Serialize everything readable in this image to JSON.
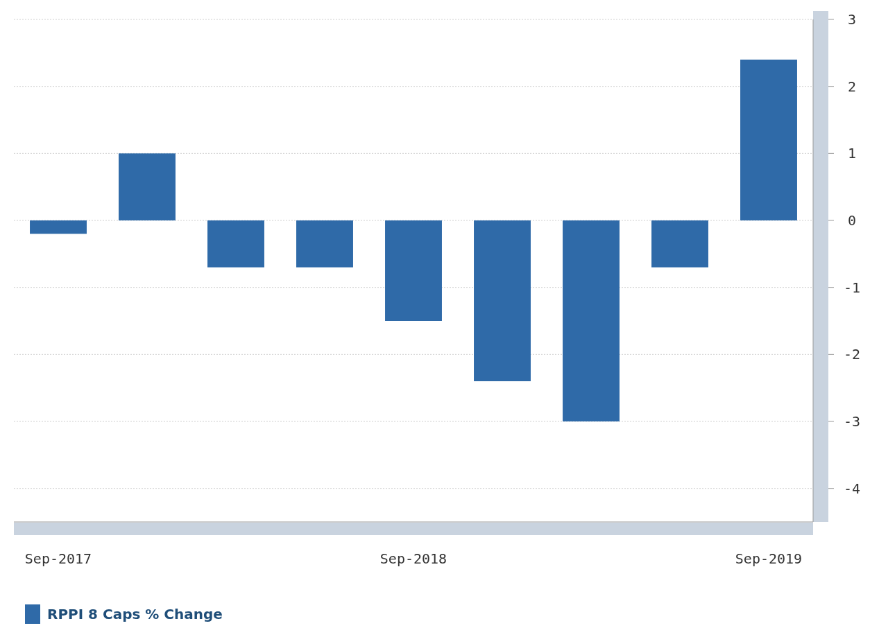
{
  "chart_data": {
    "type": "bar",
    "categories": [
      "Sep-2017",
      null,
      null,
      null,
      "Sep-2018",
      null,
      null,
      null,
      "Sep-2019"
    ],
    "series": [
      {
        "name": "RPPI 8 Caps % Change",
        "color": "#2f6aa8",
        "values": [
          -0.2,
          1.0,
          -0.7,
          -0.7,
          -1.5,
          -2.4,
          -3.0,
          -0.7,
          2.4
        ]
      }
    ],
    "ylim": [
      -4.5,
      3
    ],
    "yticks": [
      -4,
      -3,
      -2,
      -1,
      0,
      1,
      2,
      3
    ],
    "grid": "y",
    "legend": "bottom"
  }
}
